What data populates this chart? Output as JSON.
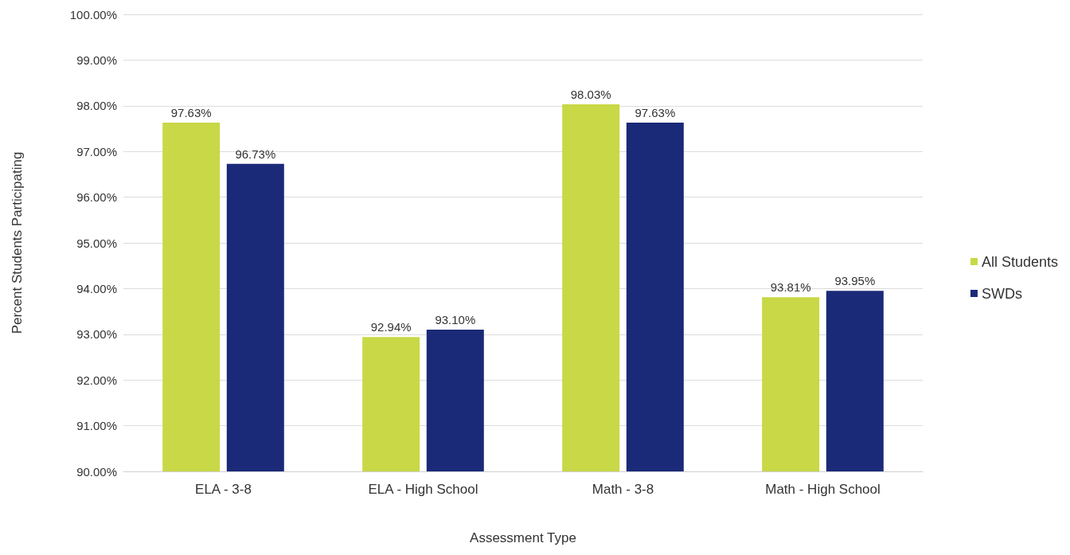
{
  "chart_data": {
    "type": "bar",
    "xlabel": "Assessment Type",
    "ylabel": "Percent Students Participating",
    "categories": [
      "ELA - 3-8",
      "ELA - High School",
      "Math - 3-8",
      "Math - High School"
    ],
    "series": [
      {
        "name": "All Students",
        "color": "#c8d846",
        "values": [
          97.63,
          92.94,
          98.03,
          93.81
        ],
        "value_labels": [
          "97.63%",
          "92.94%",
          "98.03%",
          "93.81%"
        ]
      },
      {
        "name": "SWDs",
        "color": "#1b2a78",
        "values": [
          96.73,
          93.1,
          97.63,
          93.95
        ],
        "value_labels": [
          "96.73%",
          "93.10%",
          "97.63%",
          "93.95%"
        ]
      }
    ],
    "ylim": [
      90,
      100
    ],
    "yticks": [
      {
        "value": 90,
        "label": "90.00%"
      },
      {
        "value": 91,
        "label": "91.00%"
      },
      {
        "value": 92,
        "label": "92.00%"
      },
      {
        "value": 93,
        "label": "93.00%"
      },
      {
        "value": 94,
        "label": "94.00%"
      },
      {
        "value": 95,
        "label": "95.00%"
      },
      {
        "value": 96,
        "label": "96.00%"
      },
      {
        "value": 97,
        "label": "97.00%"
      },
      {
        "value": 98,
        "label": "98.00%"
      },
      {
        "value": 99,
        "label": "99.00%"
      },
      {
        "value": 100,
        "label": "100.00%"
      }
    ],
    "grid": "y",
    "legend": "right"
  }
}
